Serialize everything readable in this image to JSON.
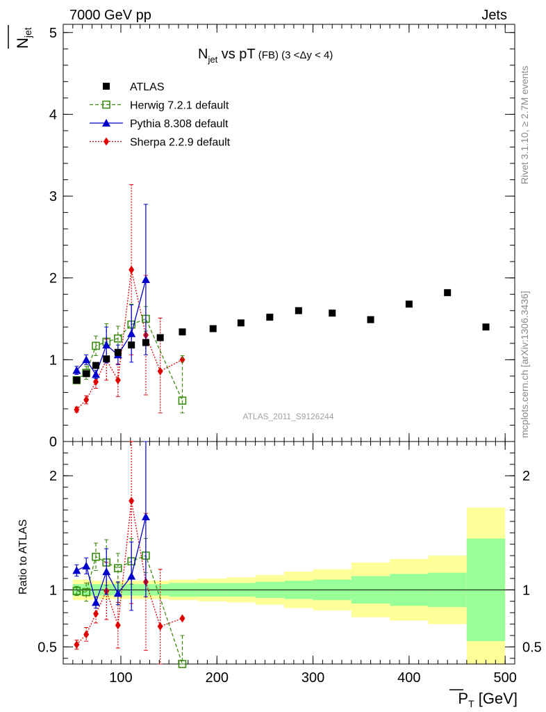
{
  "header": {
    "left": "7000 GeV pp",
    "right": "Jets"
  },
  "side_labels": {
    "rivet": "Rivet 3.1.10, ≥ 2.7M events",
    "mcplots": "mcplots.cern.ch [arXiv:1306.3436]"
  },
  "watermark": "ATLAS_2011_S9126244",
  "title": {
    "main": "N",
    "sub": "jet",
    "rest": " vs pT",
    "small": " (FB) ",
    "range": "(3 <Δy < 4)"
  },
  "axes": {
    "ylabel_main": "N",
    "ylabel_sub": "jet",
    "ylabel_ratio": "Ratio to ATLAS",
    "xlabel_main": "P",
    "xlabel_sub": "T",
    "xlabel_unit": " [GeV]"
  },
  "legend": [
    {
      "label": "ATLAS",
      "color": "#000000",
      "marker": "square-filled",
      "line": "none"
    },
    {
      "label": "Herwig 7.2.1 default",
      "color": "#3a8c10",
      "marker": "square-open",
      "line": "dashed"
    },
    {
      "label": "Pythia 8.308 default",
      "color": "#0000cc",
      "marker": "triangle",
      "line": "solid"
    },
    {
      "label": "Sherpa 2.2.9 default",
      "color": "#e00000",
      "marker": "diamond",
      "line": "dotted"
    }
  ],
  "chart_data": {
    "type": "scatter",
    "x_range": [
      40,
      510
    ],
    "main_y_range": [
      0,
      5.1
    ],
    "ratio_y_range": [
      0.35,
      2.3
    ],
    "x_ticks": [
      "100",
      "200",
      "300",
      "400",
      "500"
    ],
    "main_y_ticks": [
      "0",
      "1",
      "2",
      "3",
      "4",
      "5"
    ],
    "ratio_y_ticks": [
      "0.5",
      "1",
      "2"
    ],
    "atlas": {
      "x": [
        54,
        64,
        74,
        85,
        97,
        111,
        126,
        141,
        164,
        196,
        225,
        255,
        285,
        320,
        360,
        400,
        440,
        480
      ],
      "y": [
        0.75,
        0.83,
        0.93,
        1.01,
        1.09,
        1.18,
        1.21,
        1.27,
        1.34,
        1.38,
        1.45,
        1.52,
        1.6,
        1.57,
        1.49,
        1.68,
        1.82,
        1.4
      ],
      "bin_edges": [
        50,
        60,
        70,
        80,
        90,
        105,
        118,
        135,
        150,
        180,
        210,
        240,
        270,
        300,
        340,
        380,
        420,
        460,
        500
      ],
      "band_inner": [
        0.05,
        0.05,
        0.05,
        0.05,
        0.05,
        0.05,
        0.05,
        0.05,
        0.06,
        0.06,
        0.06,
        0.07,
        0.08,
        0.09,
        0.12,
        0.14,
        0.15,
        0.45
      ],
      "band_outer": [
        0.09,
        0.09,
        0.08,
        0.08,
        0.08,
        0.08,
        0.08,
        0.08,
        0.09,
        0.1,
        0.11,
        0.13,
        0.16,
        0.18,
        0.24,
        0.27,
        0.3,
        0.72
      ]
    },
    "series": [
      {
        "name": "Herwig 7.2.1 default",
        "x": [
          54,
          64,
          74,
          85,
          97,
          111,
          126,
          164
        ],
        "y": [
          0.75,
          0.84,
          1.17,
          1.22,
          1.26,
          1.43,
          1.5,
          0.5
        ],
        "err": [
          0.04,
          0.08,
          0.12,
          0.22,
          0.15,
          0.25,
          0.15,
          0.55
        ]
      },
      {
        "name": "Pythia 8.308 default",
        "x": [
          54,
          64,
          74,
          85,
          97,
          111,
          126
        ],
        "y": [
          0.87,
          1.0,
          0.82,
          1.18,
          1.06,
          1.32,
          1.98
        ],
        "err": [
          0.05,
          0.06,
          0.05,
          0.22,
          0.12,
          0.35,
          0.92
        ]
      },
      {
        "name": "Sherpa 2.2.9 default",
        "x": [
          54,
          64,
          74,
          85,
          97,
          111,
          126,
          141,
          164
        ],
        "y": [
          0.39,
          0.51,
          0.73,
          1.0,
          0.75,
          2.1,
          1.3,
          0.86,
          1.0
        ],
        "err": [
          0.03,
          0.05,
          0.08,
          0.25,
          0.2,
          1.04,
          0.73,
          0.65,
          0.0
        ]
      }
    ],
    "ratio": [
      {
        "name": "Herwig 7.2.1 default",
        "x": [
          54,
          64,
          74,
          85,
          97,
          111,
          126,
          164
        ],
        "y": [
          0.99,
          0.98,
          1.29,
          1.24,
          1.19,
          1.25,
          1.3,
          0.3
        ],
        "err": [
          0.04,
          0.08,
          0.12,
          0.2,
          0.13,
          0.2,
          0.15,
          0.3
        ]
      },
      {
        "name": "Pythia 8.308 default",
        "x": [
          54,
          64,
          74,
          85,
          97,
          111,
          126
        ],
        "y": [
          1.17,
          1.21,
          0.89,
          1.16,
          0.97,
          1.12,
          1.64
        ],
        "err": [
          0.05,
          0.07,
          0.05,
          0.2,
          0.1,
          0.3,
          0.7
        ]
      },
      {
        "name": "Sherpa 2.2.9 default",
        "x": [
          54,
          64,
          74,
          85,
          97,
          111,
          126,
          141,
          164
        ],
        "y": [
          0.52,
          0.61,
          0.79,
          0.99,
          0.69,
          1.78,
          1.07,
          0.68,
          0.75
        ],
        "err": [
          0.04,
          0.06,
          0.08,
          0.25,
          0.2,
          0.9,
          0.6,
          0.5,
          0.0
        ]
      }
    ]
  }
}
